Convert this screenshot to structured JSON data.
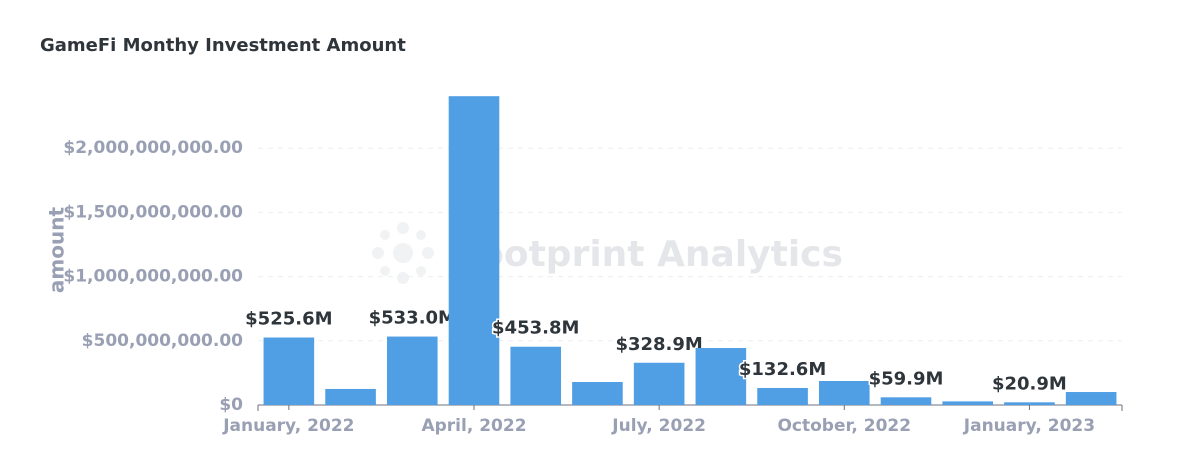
{
  "chart_data": {
    "type": "bar",
    "title": "GameFi Monthy Investment Amount",
    "y_label": "amount",
    "watermark": "Footprint Analytics",
    "categories": [
      "January, 2022",
      null,
      null,
      "April, 2022",
      null,
      null,
      "July, 2022",
      null,
      null,
      "October, 2022",
      null,
      null,
      "January, 2023",
      null
    ],
    "values": [
      525600000,
      125000000,
      533000000,
      2405000000,
      453800000,
      179000000,
      328900000,
      444000000,
      132600000,
      187000000,
      59900000,
      28000000,
      20900000,
      101000000
    ],
    "value_labels": [
      "$525.6M",
      null,
      "$533.0M",
      null,
      "$453.8M",
      null,
      "$328.9M",
      null,
      "$132.6M",
      null,
      "$59.9M",
      null,
      "$20.9M",
      null
    ],
    "color": "#509ee3",
    "ylim": [
      0,
      2500000000
    ],
    "yticks": [
      {
        "value": 0,
        "label": "$0"
      },
      {
        "value": 500000000,
        "label": "$500,000,000.00"
      },
      {
        "value": 1000000000,
        "label": "$1,000,000,000.00"
      },
      {
        "value": 1500000000,
        "label": "$1,500,000,000.00"
      },
      {
        "value": 2000000000,
        "label": "$2,000,000,000.00"
      }
    ],
    "grid": true
  }
}
